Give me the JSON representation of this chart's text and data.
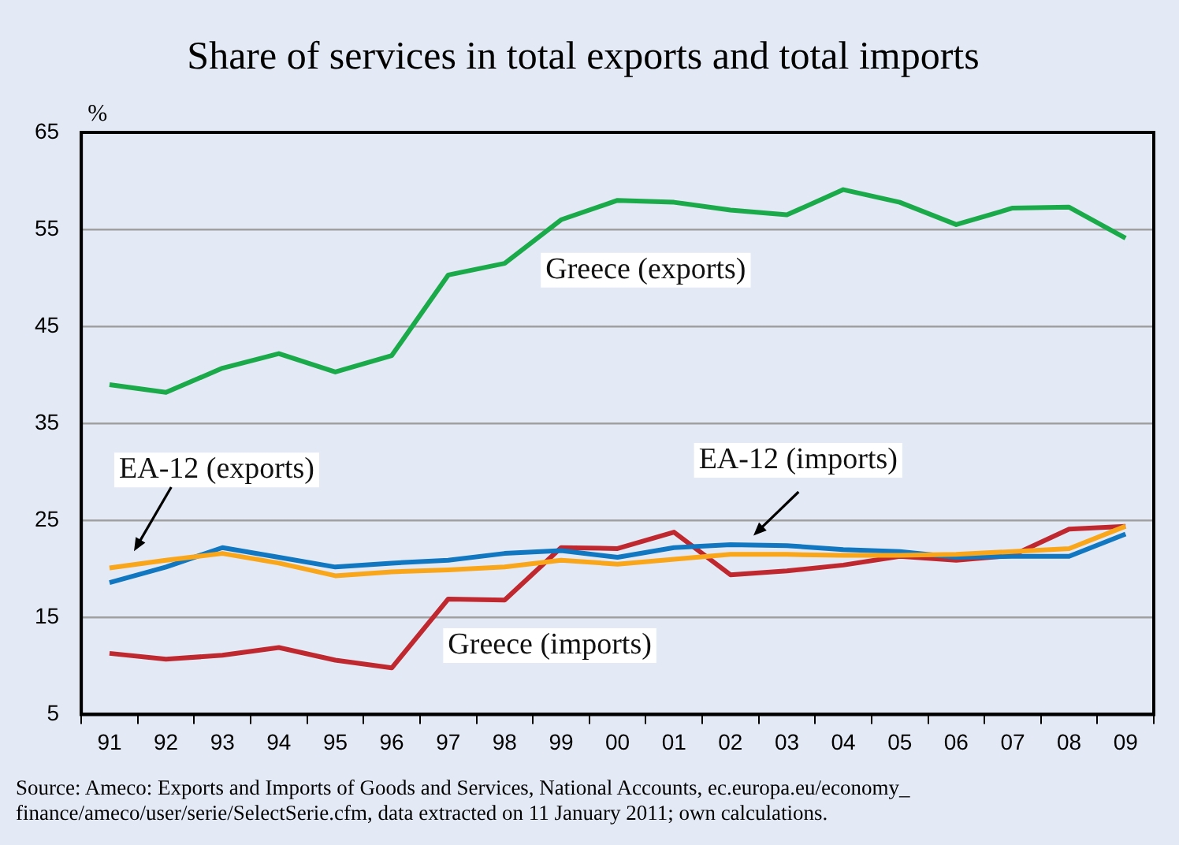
{
  "chart_data": {
    "type": "line",
    "title": "Share of services in total exports and total imports",
    "ylabel": "%",
    "categories": [
      "91",
      "92",
      "93",
      "94",
      "95",
      "96",
      "97",
      "98",
      "99",
      "00",
      "01",
      "02",
      "03",
      "04",
      "05",
      "06",
      "07",
      "08",
      "09"
    ],
    "series": [
      {
        "name": "Greece (exports)",
        "color": "#1aaa4a",
        "values": [
          39,
          38.2,
          40.7,
          42.2,
          40.3,
          42,
          50.3,
          51.5,
          56,
          58,
          57.8,
          57,
          56.5,
          59.1,
          57.8,
          55.5,
          57.2,
          57.3,
          54.1
        ]
      },
      {
        "name": "EA-12 (exports)",
        "color": "#f9a61a",
        "values": [
          20.1,
          20.9,
          21.6,
          20.6,
          19.3,
          19.7,
          19.9,
          20.2,
          20.9,
          20.5,
          21,
          21.5,
          21.5,
          21.4,
          21.4,
          21.5,
          21.8,
          22.1,
          24.4
        ]
      },
      {
        "name": "EA-12 (imports)",
        "color": "#1177c0",
        "values": [
          18.6,
          20.2,
          22.2,
          21.2,
          20.2,
          20.6,
          20.9,
          21.6,
          21.9,
          21.2,
          22.2,
          22.5,
          22.4,
          22,
          21.8,
          21.2,
          21.3,
          21.3,
          23.6
        ]
      },
      {
        "name": "Greece (imports)",
        "color": "#c0282f",
        "values": [
          11.3,
          10.7,
          11.1,
          11.9,
          10.6,
          9.8,
          16.9,
          16.8,
          22.2,
          22.1,
          23.8,
          19.4,
          19.8,
          20.4,
          21.3,
          20.9,
          21.4,
          24.1,
          24.4
        ]
      }
    ],
    "ylim": [
      5,
      65
    ],
    "yticks": [
      5,
      15,
      25,
      35,
      45,
      55,
      65
    ],
    "grid": "y",
    "legend": false,
    "marker": "none",
    "line_style": "solid",
    "annotations": [
      "Source: Ameco: Exports and Imports of Goods and Services, National Accounts, ec.europa.eu/economy_ finance/ameco/user/serie/SelectSerie.cfm, data extracted on 11 January 2011; own calculations."
    ]
  }
}
